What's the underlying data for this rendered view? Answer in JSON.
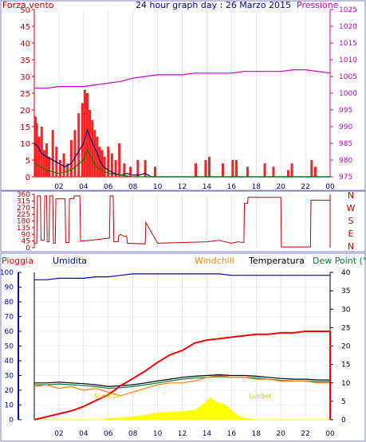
{
  "colors": {
    "wind": "#cc0000",
    "gust_fill": "#ff2020",
    "wind_avg": "#000080",
    "wind_green": "#008000",
    "pressure": "#cc00cc",
    "direction": "#cc0000",
    "rain": "#ff0000",
    "humidity": "#0000cc",
    "windchill": "#ff8000",
    "temperature": "#000000",
    "dewpoint": "#008040",
    "solar": "#ffff00",
    "title": "#0000aa",
    "frame": "#8080c0"
  },
  "chart_data": [
    {
      "type": "line",
      "title": "24 hour graph day : 26 Marzo 2015",
      "left_label": "Forza vento",
      "right_label": "Pressione",
      "x_ticks": [
        "02",
        "04",
        "06",
        "08",
        "10",
        "12",
        "14",
        "16",
        "18",
        "20",
        "22",
        "00"
      ],
      "ylim_left": [
        0,
        50
      ],
      "y_ticks_left": [
        0,
        5,
        10,
        15,
        20,
        25,
        30,
        35,
        40,
        45,
        50
      ],
      "ylim_right": [
        975,
        1025
      ],
      "y_ticks_right": [
        975,
        980,
        985,
        990,
        995,
        1000,
        1005,
        1010,
        1015,
        1020,
        1025
      ],
      "series": [
        {
          "axis": "right",
          "x": [
            0,
            1,
            2,
            3,
            4,
            5,
            6,
            7,
            8,
            9,
            10,
            11,
            12,
            13,
            14,
            15,
            16,
            17,
            18,
            19,
            20,
            21,
            22,
            23,
            24
          ],
          "values": [
            1001.5,
            1001.5,
            1002.0,
            1002.0,
            1002.0,
            1002.5,
            1003.0,
            1003.5,
            1004.5,
            1005.0,
            1005.5,
            1005.5,
            1005.5,
            1006.0,
            1006.0,
            1006.0,
            1006.0,
            1006.5,
            1006.5,
            1006.5,
            1006.5,
            1007.0,
            1007.0,
            1006.5,
            1006.0
          ]
        },
        {
          "axis": "left",
          "x": [
            0,
            0.3,
            0.6,
            1.0,
            1.5,
            2.0,
            2.5,
            3.0,
            3.5,
            4.0,
            4.3,
            4.6,
            5.0,
            5.3,
            5.6,
            6.0,
            6.5,
            7.0,
            7.5,
            8.0,
            8.5,
            9.0,
            9.5,
            10.0,
            24.0
          ],
          "values": [
            10,
            9,
            7,
            6,
            5,
            4,
            3,
            4,
            7,
            10,
            14,
            11,
            8,
            5,
            3,
            2,
            1,
            0.5,
            1,
            0.5,
            0.5,
            1,
            0,
            0,
            0
          ]
        },
        {
          "axis": "left",
          "x": [
            0,
            0.5,
            1.0,
            2.0,
            3.0,
            4.0,
            4.3,
            4.6,
            5.0,
            5.5,
            6.0,
            7.0,
            8.0,
            24.0
          ],
          "values": [
            4,
            3,
            2,
            1,
            2,
            5,
            8,
            6,
            3,
            2,
            1,
            0.5,
            0,
            0
          ]
        }
      ],
      "gust_bars": {
        "x": [
          0.1,
          0.2,
          0.4,
          0.6,
          0.8,
          1.0,
          1.2,
          1.5,
          1.8,
          2.1,
          2.4,
          2.7,
          3.0,
          3.3,
          3.6,
          3.9,
          4.1,
          4.3,
          4.5,
          4.7,
          4.9,
          5.1,
          5.3,
          5.5,
          5.7,
          6.0,
          6.3,
          6.6,
          6.9,
          7.3,
          7.8,
          8.4,
          9.0,
          9.8,
          13.1,
          13.9,
          14.2,
          15.3,
          16.1,
          16.4,
          17.3,
          18.7,
          19.4,
          20.6,
          20.9,
          22.5,
          22.8
        ],
        "values": [
          18,
          16,
          12,
          15,
          8,
          10,
          6,
          14,
          9,
          5,
          7,
          4,
          11,
          14,
          19,
          22,
          26,
          25,
          20,
          17,
          14,
          12,
          9,
          8,
          6,
          9,
          7,
          5,
          10,
          4,
          3,
          5,
          5,
          3,
          4,
          5,
          6,
          4,
          5,
          5,
          3,
          4,
          3,
          2,
          4,
          5,
          3
        ]
      }
    },
    {
      "type": "line",
      "right_labels": [
        "N",
        "W",
        "S",
        "E",
        "N"
      ],
      "ylim": [
        0,
        360
      ],
      "y_ticks": [
        0,
        45,
        90,
        135,
        180,
        225,
        270,
        315,
        360
      ],
      "x_ticks": [
        "02",
        "04",
        "06",
        "08",
        "10",
        "12",
        "14",
        "16",
        "18",
        "20",
        "22",
        "00"
      ],
      "x": [
        0,
        0.2,
        0.25,
        0.5,
        0.55,
        0.8,
        0.85,
        1.0,
        1.05,
        1.2,
        1.25,
        1.5,
        1.55,
        1.7,
        1.75,
        2.5,
        2.55,
        2.8,
        2.85,
        3.2,
        3.25,
        3.7,
        3.75,
        4.0,
        6.1,
        6.15,
        6.4,
        6.45,
        6.8,
        6.85,
        7.0,
        7.3,
        7.5,
        7.55,
        9.0,
        9.05,
        10.0,
        12.0,
        14.0,
        15.0,
        15.5,
        16.0,
        16.5,
        17.0,
        17.05,
        17.3,
        17.35,
        20.0,
        20.05,
        22.4,
        22.45,
        24.0
      ],
      "values": [
        30,
        30,
        350,
        350,
        50,
        50,
        350,
        350,
        40,
        40,
        350,
        350,
        30,
        30,
        330,
        330,
        35,
        35,
        330,
        330,
        350,
        350,
        45,
        45,
        65,
        350,
        350,
        40,
        40,
        80,
        90,
        75,
        80,
        30,
        25,
        170,
        30,
        35,
        40,
        50,
        40,
        30,
        40,
        35,
        300,
        300,
        340,
        340,
        5,
        5,
        320,
        320
      ]
    },
    {
      "type": "line",
      "legend": [
        "Pioggia",
        "Umidita",
        "Windchill",
        "Temperatura",
        "Dew Point (°C"
      ],
      "x_ticks": [
        "02",
        "04",
        "06",
        "08",
        "10",
        "12",
        "14",
        "16",
        "18",
        "20",
        "22",
        "00"
      ],
      "ylim_left": [
        0,
        100
      ],
      "y_ticks_left": [
        0,
        10,
        20,
        30,
        40,
        50,
        60,
        70,
        80,
        90,
        100
      ],
      "ylim_right": [
        0,
        40
      ],
      "y_ticks_right": [
        0,
        5,
        10,
        15,
        20,
        25,
        30,
        35,
        40
      ],
      "annotations": [
        "SunRise",
        "SunSet"
      ],
      "series": [
        {
          "axis": "left",
          "x": [
            0,
            1,
            2,
            3,
            4,
            5,
            6,
            7,
            8,
            9,
            10,
            11,
            12,
            13,
            14,
            15,
            16,
            17,
            18,
            19,
            20,
            21,
            22,
            23,
            24
          ],
          "values": [
            0,
            2,
            4,
            6,
            9,
            13,
            17,
            23,
            28,
            33,
            39,
            44,
            47,
            52,
            54,
            55,
            56,
            57,
            58,
            58,
            59,
            59,
            60,
            60,
            60
          ]
        },
        {
          "axis": "left",
          "x": [
            0,
            1,
            2,
            3,
            4,
            5,
            6,
            7,
            8,
            9,
            10,
            11,
            12,
            13,
            14,
            15,
            16,
            17,
            18,
            19,
            20,
            21,
            22,
            23,
            24
          ],
          "values": [
            95,
            95,
            96,
            96,
            96,
            97,
            97,
            98,
            99,
            99,
            99,
            99,
            99,
            99,
            99,
            99,
            98,
            98,
            98,
            98,
            98,
            98,
            98,
            98,
            98
          ]
        },
        {
          "axis": "right",
          "x": [
            0,
            1,
            2,
            3,
            4,
            5,
            6,
            7,
            8,
            9,
            10,
            11,
            12,
            13,
            14,
            15,
            16,
            17,
            18,
            19,
            20,
            21,
            22,
            23,
            24
          ],
          "values": [
            9.0,
            9.5,
            8.5,
            9.0,
            8.0,
            8.5,
            7.5,
            6.5,
            7.5,
            8.5,
            9.5,
            10.0,
            10.0,
            10.5,
            11.5,
            12.0,
            11.5,
            11.5,
            11.0,
            11.0,
            10.5,
            10.5,
            10.5,
            10.0,
            10.0
          ]
        },
        {
          "axis": "right",
          "x": [
            0,
            1,
            2,
            3,
            4,
            5,
            6,
            7,
            8,
            9,
            10,
            11,
            12,
            13,
            14,
            15,
            16,
            17,
            18,
            19,
            20,
            21,
            22,
            23,
            24
          ],
          "values": [
            10.0,
            10.0,
            10.2,
            10.0,
            9.8,
            9.5,
            9.0,
            9.2,
            9.5,
            10.0,
            10.5,
            11.0,
            11.5,
            11.8,
            12.0,
            12.2,
            12.0,
            12.0,
            11.8,
            11.5,
            11.2,
            11.0,
            11.0,
            10.8,
            10.8
          ]
        },
        {
          "axis": "right",
          "x": [
            0,
            1,
            2,
            3,
            4,
            5,
            6,
            7,
            8,
            9,
            10,
            11,
            12,
            13,
            14,
            15,
            16,
            17,
            18,
            19,
            20,
            21,
            22,
            23,
            24
          ],
          "values": [
            9.5,
            9.5,
            9.7,
            9.5,
            9.3,
            9.0,
            8.5,
            8.7,
            9.0,
            9.5,
            10.0,
            10.5,
            11.0,
            11.3,
            11.5,
            11.7,
            11.5,
            11.5,
            11.3,
            11.0,
            10.7,
            10.5,
            10.5,
            10.3,
            10.3
          ]
        }
      ],
      "solar": {
        "x": [
          0,
          5.5,
          6.0,
          7.0,
          8.0,
          9.0,
          10.0,
          11.0,
          12.0,
          13.0,
          13.5,
          14.0,
          14.3,
          14.6,
          15.0,
          15.5,
          16.0,
          16.5,
          17.0,
          17.5,
          18.0,
          24.0
        ],
        "values": [
          0,
          0,
          0.3,
          0.5,
          0.8,
          1.2,
          1.8,
          2.0,
          2.2,
          2.5,
          3.5,
          5.0,
          6.0,
          5.0,
          4.5,
          4.0,
          2.5,
          1.0,
          0.5,
          0.2,
          0,
          0
        ]
      }
    }
  ]
}
